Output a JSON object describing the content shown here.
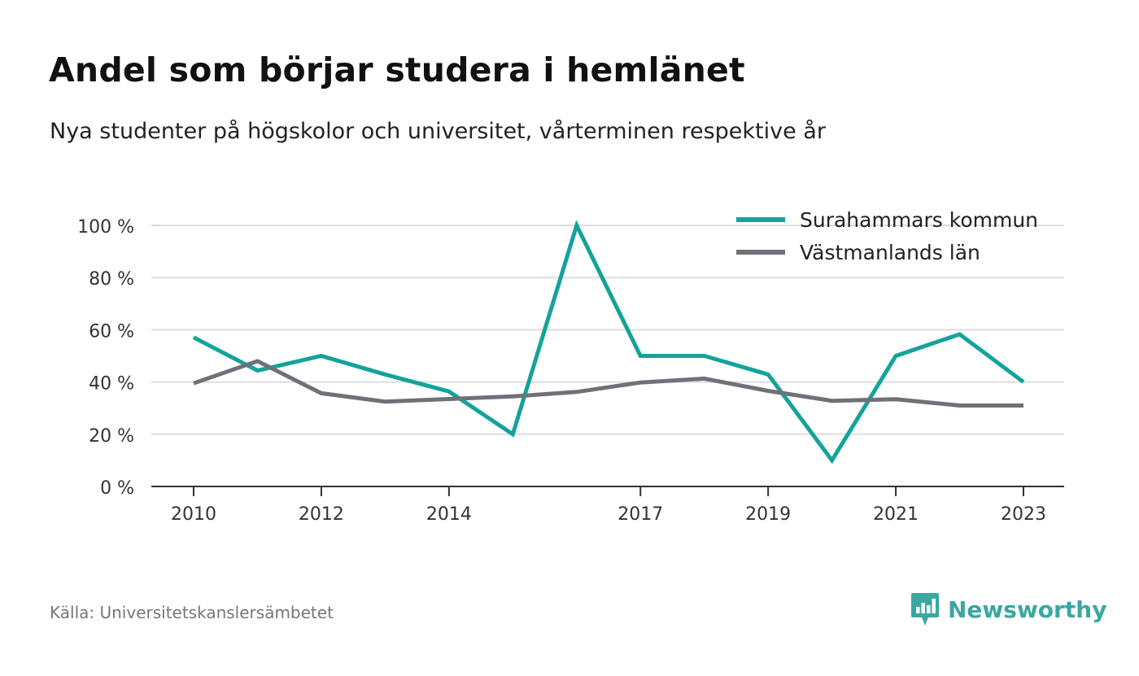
{
  "header": {
    "title": "Andel som börjar studera i hemlänet",
    "subtitle": "Nya studenter på högskolor och universitet, vårterminen respektive år"
  },
  "footer": {
    "source": "Källa: Universitetskanslersämbetet",
    "brand": "Newsworthy",
    "brand_icon": "newsworthy-logo-icon"
  },
  "colors": {
    "surahammar": "#14a39b",
    "vastmanland": "#707078",
    "grid": "#dddddd",
    "axis": "#333333",
    "brand": "#3aa7a0"
  },
  "chart_data": {
    "type": "line",
    "title": "Andel som börjar studera i hemlänet",
    "subtitle": "Nya studenter på högskolor och universitet, vårterminen respektive år",
    "x": [
      2010,
      2011,
      2012,
      2013,
      2014,
      2015,
      2016,
      2017,
      2018,
      2019,
      2020,
      2021,
      2022,
      2023
    ],
    "x_tick_labels": [
      "2010",
      "2012",
      "2014",
      "2017",
      "2019",
      "2021",
      "2023"
    ],
    "y_tick_labels": [
      "0 %",
      "20 %",
      "40 %",
      "60 %",
      "80 %",
      "100 %"
    ],
    "ylim": [
      0,
      100
    ],
    "grid": true,
    "legend_position": "top-right",
    "series": [
      {
        "name": "Surahammars kommun",
        "color": "#14a39b",
        "values": [
          57.1,
          44.4,
          50,
          42.9,
          36.4,
          20,
          100,
          50,
          50,
          42.9,
          10,
          50,
          58.3,
          40
        ]
      },
      {
        "name": "Västmanlands län",
        "color": "#707078",
        "values": [
          39.5,
          48,
          35.7,
          32.5,
          33.5,
          34.5,
          36.2,
          39.8,
          41.3,
          36.6,
          32.8,
          33.4,
          31,
          31
        ]
      }
    ]
  }
}
